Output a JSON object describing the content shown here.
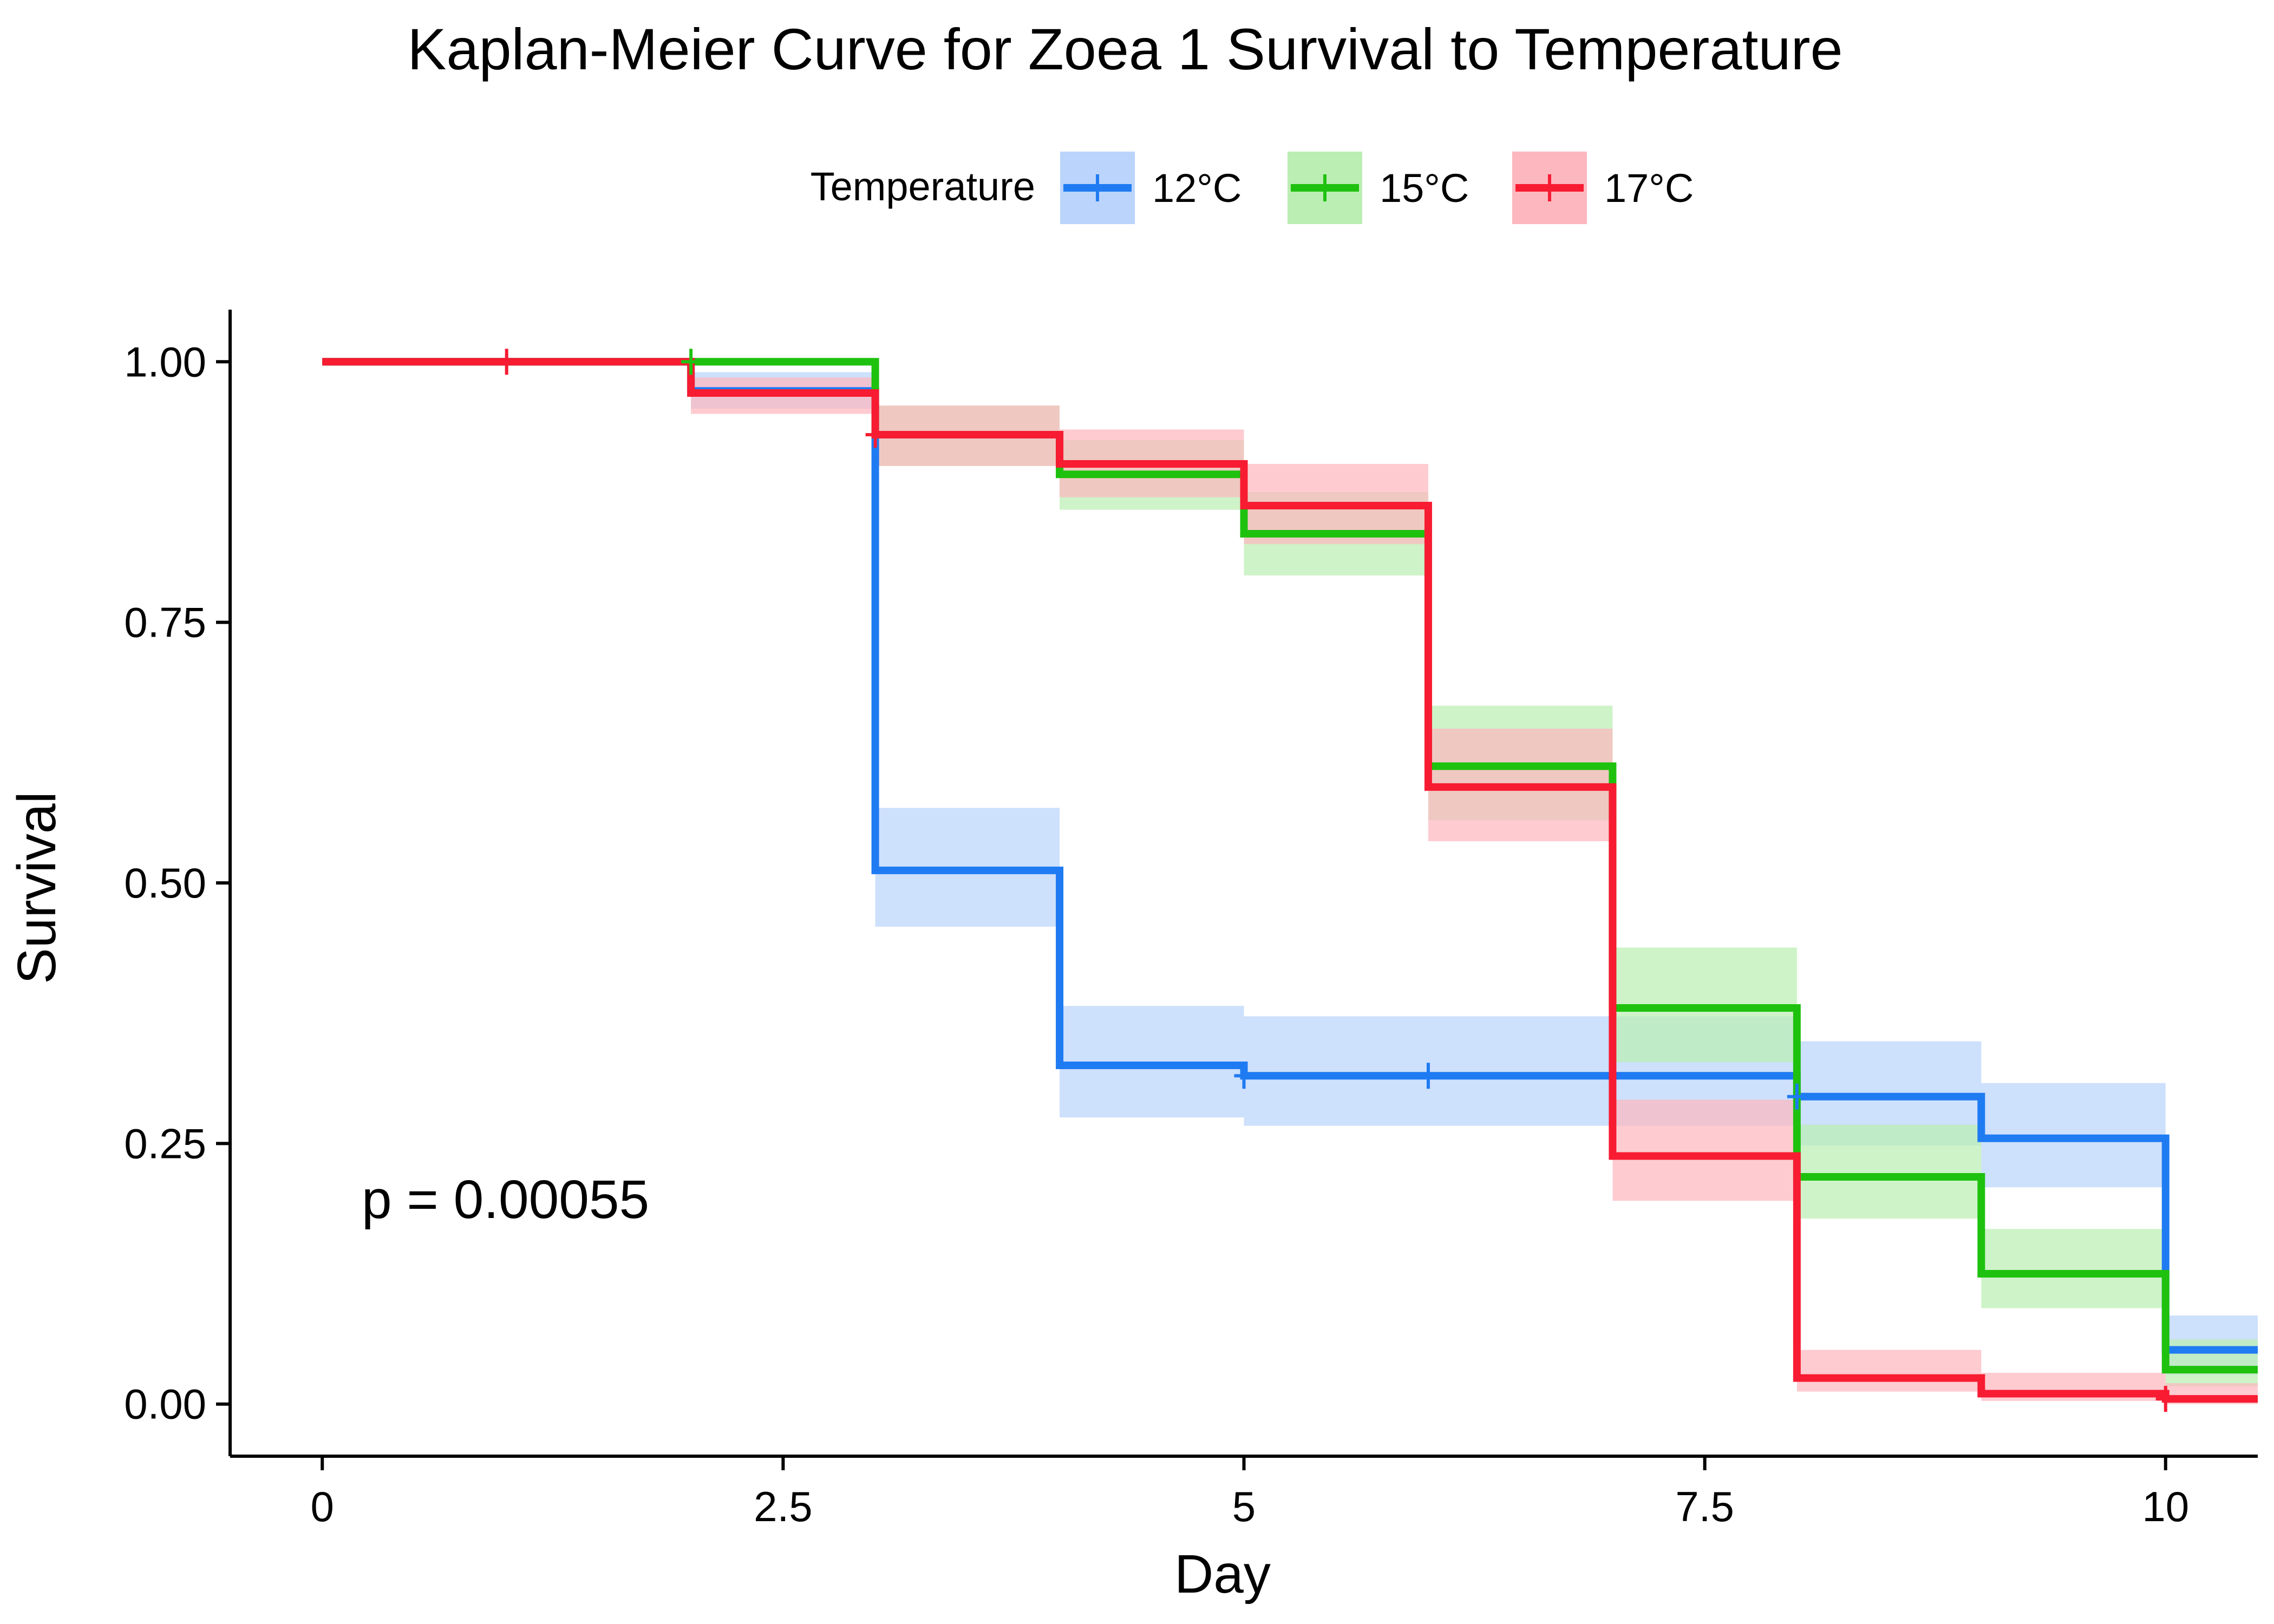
{
  "chart_data": {
    "type": "line",
    "subtype": "kaplan-meier step",
    "title": "Kaplan-Meier Curve for Zoea 1 Survival to Temperature",
    "xlabel": "Day",
    "ylabel": "Survival",
    "xlim": [
      -0.5,
      10.5
    ],
    "ylim": [
      -0.05,
      1.05
    ],
    "x_ticks": [
      0,
      2.5,
      5,
      7.5,
      10
    ],
    "x_tick_labels": [
      "0",
      "2.5",
      "5",
      "7.5",
      "10"
    ],
    "y_ticks": [
      0,
      0.25,
      0.5,
      0.75,
      1.0
    ],
    "y_tick_labels": [
      "0.00",
      "0.25",
      "0.50",
      "0.75",
      "1.00"
    ],
    "grid": false,
    "legend": {
      "title": "Temperature",
      "placement": "top"
    },
    "annotation": "p = 0.00055",
    "series": [
      {
        "name": "12°C",
        "color": "#1F7BF2",
        "band_color": "#BAD4FB",
        "x": [
          0,
          2,
          3,
          4,
          5,
          7,
          8,
          9,
          10,
          10.5
        ],
        "y": [
          1.0,
          0.972,
          0.512,
          0.325,
          0.315,
          0.315,
          0.295,
          0.255,
          0.052,
          0.052
        ],
        "lower": [
          1.0,
          0.955,
          0.458,
          0.275,
          0.267,
          0.267,
          0.248,
          0.208,
          0.028,
          0.028
        ],
        "upper": [
          1.0,
          0.99,
          0.572,
          0.382,
          0.372,
          0.372,
          0.348,
          0.308,
          0.085,
          0.085
        ],
        "censor_x": [
          5,
          6,
          8
        ],
        "censor_y": [
          0.315,
          0.315,
          0.295
        ]
      },
      {
        "name": "15°C",
        "color": "#1FC10F",
        "band_color": "#BBEEB3",
        "x": [
          0,
          3,
          4,
          5,
          6,
          7,
          8,
          9,
          10,
          10.5
        ],
        "y": [
          1.0,
          0.93,
          0.892,
          0.835,
          0.612,
          0.38,
          0.218,
          0.125,
          0.033,
          0.033
        ],
        "lower": [
          1.0,
          0.9,
          0.858,
          0.795,
          0.56,
          0.328,
          0.178,
          0.092,
          0.017,
          0.017
        ],
        "upper": [
          1.0,
          0.958,
          0.925,
          0.875,
          0.67,
          0.438,
          0.268,
          0.168,
          0.062,
          0.062
        ],
        "censor_x": [
          2
        ],
        "censor_y": [
          1.0
        ]
      },
      {
        "name": "17°C",
        "color": "#F71C32",
        "band_color": "#FDB7BF",
        "x": [
          0,
          2,
          3,
          4,
          5,
          6,
          7,
          8,
          9,
          10,
          10.5
        ],
        "y": [
          1.0,
          0.97,
          0.93,
          0.902,
          0.862,
          0.592,
          0.238,
          0.025,
          0.01,
          0.005,
          0.005
        ],
        "lower": [
          1.0,
          0.95,
          0.9,
          0.87,
          0.825,
          0.54,
          0.195,
          0.012,
          0.003,
          0.0,
          0.0
        ],
        "upper": [
          1.0,
          0.985,
          0.958,
          0.935,
          0.902,
          0.648,
          0.292,
          0.052,
          0.03,
          0.02,
          0.02
        ],
        "censor_x": [
          1,
          3,
          10
        ],
        "censor_y": [
          1.0,
          0.93,
          0.005
        ]
      }
    ]
  }
}
